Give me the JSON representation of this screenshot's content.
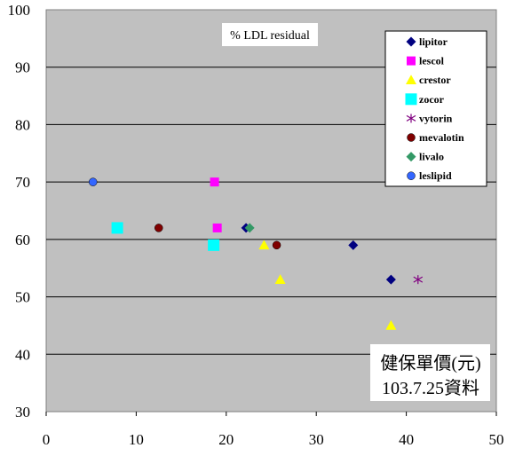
{
  "chart_data": {
    "type": "scatter",
    "title": "% LDL residual",
    "xlabel": "",
    "ylabel": "",
    "xlim": [
      0,
      50
    ],
    "ylim": [
      30,
      100
    ],
    "x_ticks": [
      "0",
      "10",
      "20",
      "30",
      "40",
      "50"
    ],
    "y_ticks": [
      "30",
      "40",
      "50",
      "60",
      "70",
      "80",
      "90",
      "100"
    ],
    "grid": "horizontal",
    "legend_position": "top-right",
    "annotation": [
      "健保單價(元)",
      "103.7.25資料"
    ],
    "series": [
      {
        "name": "lipitor",
        "marker": "diamond",
        "color": "#000080",
        "points": [
          [
            22.2,
            62
          ],
          [
            34.1,
            59
          ],
          [
            38.3,
            53
          ]
        ]
      },
      {
        "name": "lescol",
        "marker": "square",
        "color": "#FF00FF",
        "points": [
          [
            18.7,
            70
          ],
          [
            19.0,
            62
          ]
        ]
      },
      {
        "name": "crestor",
        "marker": "triangle",
        "color": "#FFFF00",
        "points": [
          [
            24.2,
            59
          ],
          [
            26.0,
            53
          ],
          [
            38.3,
            45
          ]
        ]
      },
      {
        "name": "zocor",
        "marker": "square",
        "color": "#00FFFF",
        "points": [
          [
            7.9,
            62
          ],
          [
            18.6,
            59
          ]
        ]
      },
      {
        "name": "vytorin",
        "marker": "star",
        "color": "#800080",
        "points": [
          [
            41.3,
            53
          ]
        ]
      },
      {
        "name": "mevalotin",
        "marker": "circle",
        "color": "#800000",
        "points": [
          [
            12.5,
            62
          ],
          [
            25.6,
            59
          ]
        ]
      },
      {
        "name": "livalo",
        "marker": "diamond",
        "color": "#339966",
        "points": [
          [
            22.6,
            62
          ]
        ]
      },
      {
        "name": "leslipid",
        "marker": "circle",
        "color": "#3366FF",
        "points": [
          [
            5.2,
            70
          ]
        ]
      }
    ]
  }
}
